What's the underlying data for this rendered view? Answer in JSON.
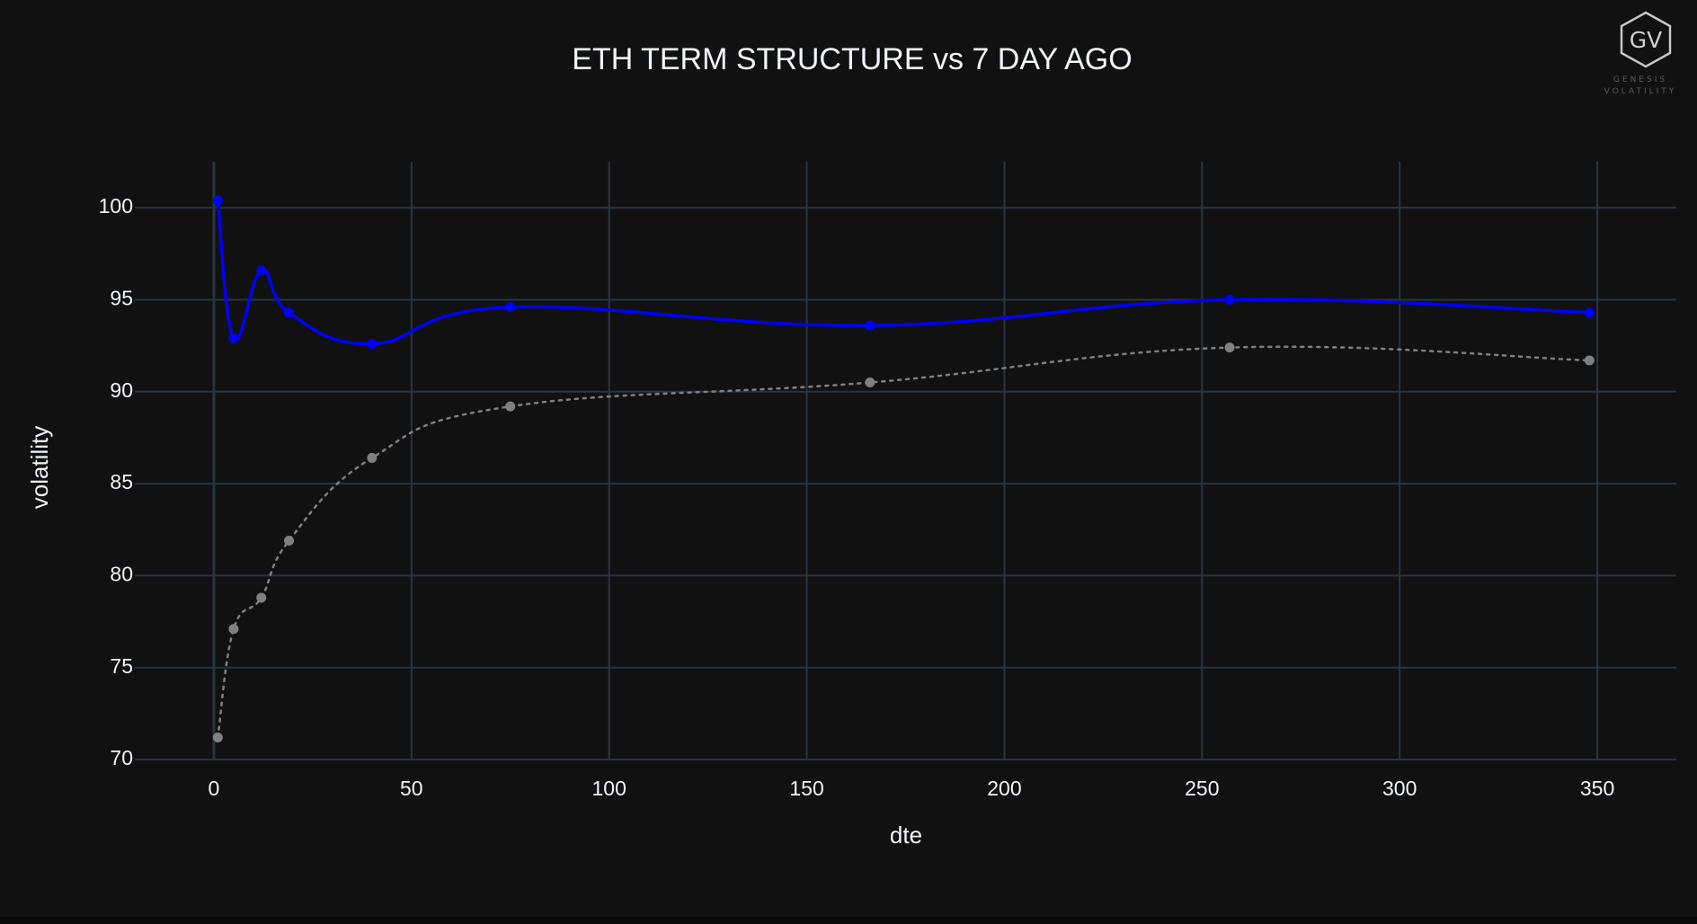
{
  "logo": {
    "mark": "GV",
    "line1": "GENESIS",
    "line2": "VOLATILITY"
  },
  "colors": {
    "background": "#111111",
    "grid": "#283442",
    "text": "#f2f5fa",
    "current_series": "#0000ff",
    "previous_series": "#808080"
  },
  "chart_data": {
    "type": "line",
    "title": "ETH TERM STRUCTURE vs 7 DAY AGO",
    "xlabel": "dte",
    "ylabel": "volatility",
    "xlim": [
      -20,
      370
    ],
    "ylim": [
      70,
      102.5
    ],
    "xticks": [
      0,
      50,
      100,
      150,
      200,
      250,
      300,
      350
    ],
    "yticks": [
      70,
      75,
      80,
      85,
      90,
      95,
      100
    ],
    "grid": true,
    "legend": "none",
    "series": [
      {
        "color": "#0000ff",
        "style": "solid",
        "points": [
          {
            "x": 1,
            "y": 100.4
          },
          {
            "x": 5,
            "y": 92.9
          },
          {
            "x": 12,
            "y": 96.6
          },
          {
            "x": 19,
            "y": 94.3
          },
          {
            "x": 40,
            "y": 92.6
          },
          {
            "x": 75,
            "y": 94.6
          },
          {
            "x": 166,
            "y": 93.6
          },
          {
            "x": 257,
            "y": 95.0
          },
          {
            "x": 348,
            "y": 94.3
          }
        ]
      },
      {
        "color": "#808080",
        "style": "dotted",
        "points": [
          {
            "x": 1,
            "y": 71.2
          },
          {
            "x": 5,
            "y": 77.1
          },
          {
            "x": 12,
            "y": 78.8
          },
          {
            "x": 19,
            "y": 81.9
          },
          {
            "x": 40,
            "y": 86.4
          },
          {
            "x": 75,
            "y": 89.2
          },
          {
            "x": 166,
            "y": 90.5
          },
          {
            "x": 257,
            "y": 92.4
          },
          {
            "x": 348,
            "y": 91.7
          }
        ]
      }
    ]
  }
}
